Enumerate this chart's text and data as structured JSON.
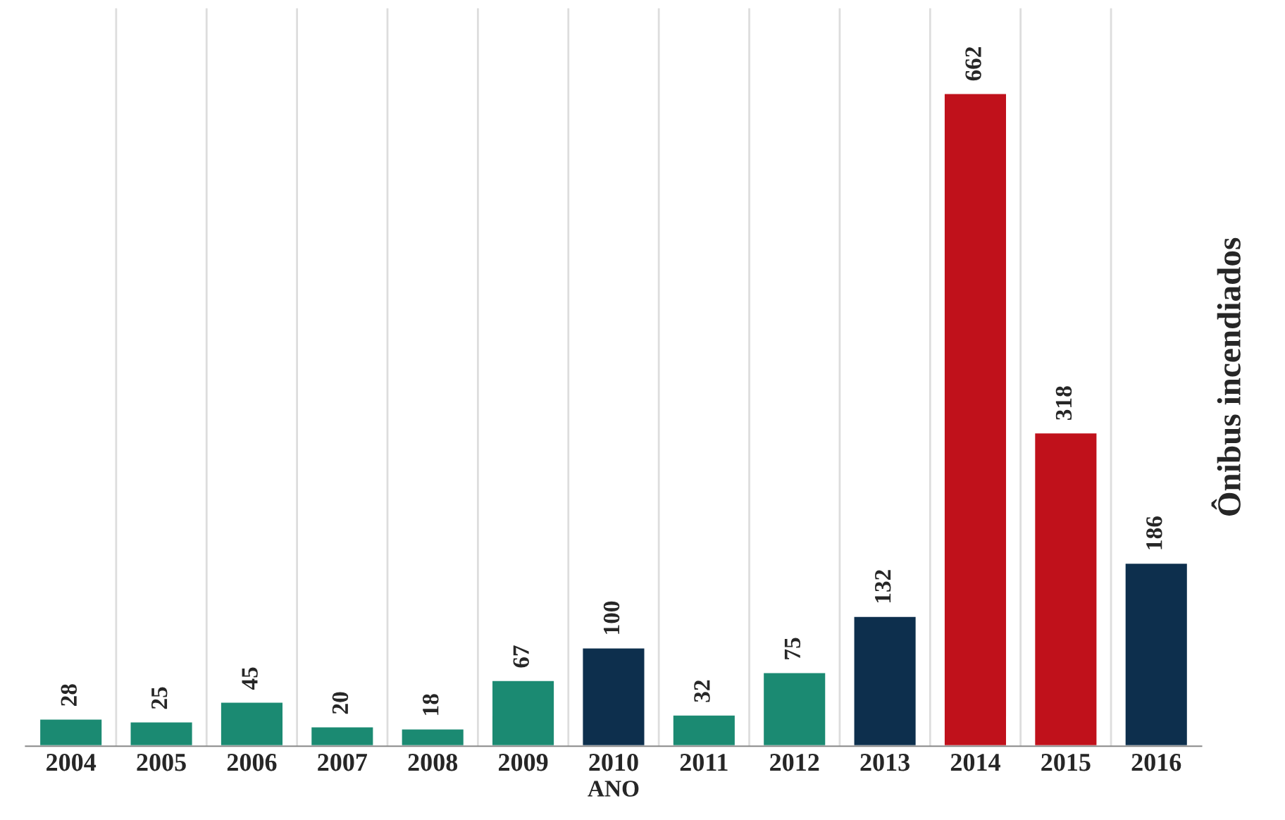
{
  "chart_data": {
    "type": "bar",
    "xlabel": "ANO",
    "ylabel": "Ônibus incendiados",
    "categories": [
      "2004",
      "2005",
      "2006",
      "2007",
      "2008",
      "2009",
      "2010",
      "2011",
      "2012",
      "2013",
      "2014",
      "2015",
      "2016"
    ],
    "values": [
      28,
      25,
      45,
      20,
      18,
      67,
      100,
      32,
      75,
      132,
      662,
      318,
      186
    ],
    "colors": [
      "#1b8a72",
      "#1b8a72",
      "#1b8a72",
      "#1b8a72",
      "#1b8a72",
      "#1b8a72",
      "#0d2f4d",
      "#1b8a72",
      "#1b8a72",
      "#0d2f4d",
      "#c0111b",
      "#c0111b",
      "#0d2f4d"
    ],
    "data_labels": true,
    "grid": "x"
  }
}
